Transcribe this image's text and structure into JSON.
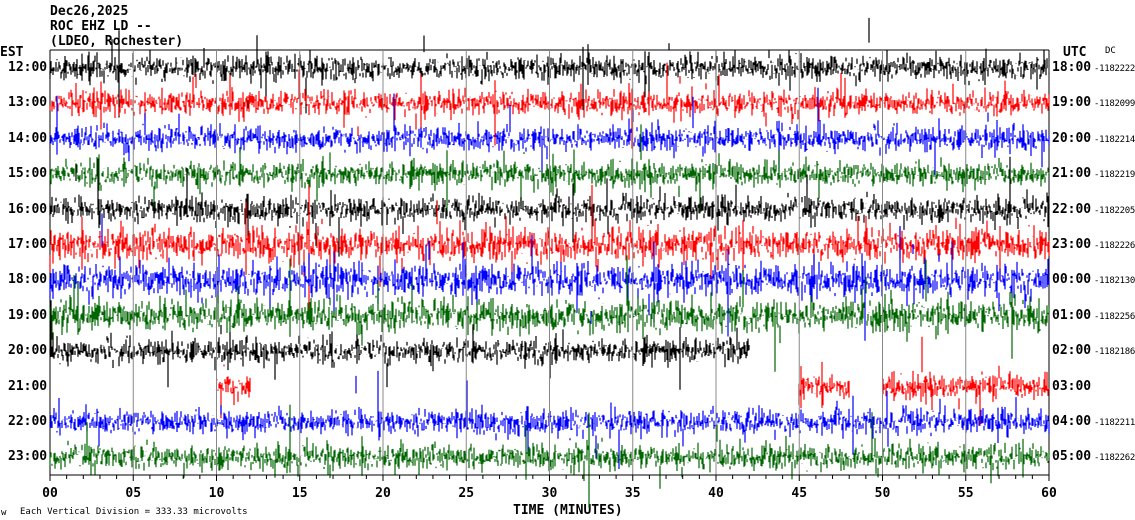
{
  "header": {
    "date": "Dec26,2025",
    "station": "ROC EHZ LD --",
    "network": "(LDEO, Rochester)",
    "left_tz": "EST",
    "right_tz": "UTC",
    "dc_label": "DC"
  },
  "footer": {
    "xlabel": "TIME (MINUTES)",
    "scale_note": "Each Vertical Division =   333.33 microvolts",
    "corner_mark": "w"
  },
  "chart_data": {
    "type": "line",
    "xlabel": "TIME (MINUTES)",
    "xlim": [
      0,
      60
    ],
    "x_ticks": [
      "00",
      "05",
      "10",
      "15",
      "20",
      "25",
      "30",
      "35",
      "40",
      "45",
      "50",
      "55",
      "60"
    ],
    "grid": true,
    "trace_colors": [
      "#000000",
      "#ff0000",
      "#0000ff",
      "#006600"
    ],
    "rows": [
      {
        "est": "12:00",
        "utc": "18:00",
        "dc": "-1182222",
        "color": "#000000"
      },
      {
        "est": "13:00",
        "utc": "19:00",
        "dc": "-1182099",
        "color": "#ff0000"
      },
      {
        "est": "14:00",
        "utc": "20:00",
        "dc": "-1182214",
        "color": "#0000ff"
      },
      {
        "est": "15:00",
        "utc": "21:00",
        "dc": "-1182219",
        "color": "#006600"
      },
      {
        "est": "16:00",
        "utc": "22:00",
        "dc": "-1182205",
        "color": "#000000"
      },
      {
        "est": "17:00",
        "utc": "23:00",
        "dc": "-1182226",
        "color": "#ff0000"
      },
      {
        "est": "18:00",
        "utc": "00:00",
        "dc": "-1182130",
        "color": "#0000ff"
      },
      {
        "est": "19:00",
        "utc": "01:00",
        "dc": "-1182256",
        "color": "#006600"
      },
      {
        "est": "20:00",
        "utc": "02:00",
        "dc": "-1182186",
        "color": "#000000",
        "data_minutes": [
          [
            0,
            42
          ]
        ]
      },
      {
        "est": "21:00",
        "utc": "03:00",
        "dc": "",
        "color": "#ff0000",
        "data_minutes": [
          [
            10,
            12
          ],
          [
            45,
            48
          ],
          [
            50,
            53
          ],
          [
            53,
            60
          ]
        ]
      },
      {
        "est": "22:00",
        "utc": "04:00",
        "dc": "-1182211",
        "color": "#0000ff"
      },
      {
        "est": "23:00",
        "utc": "05:00",
        "dc": "-1182262",
        "color": "#006600"
      }
    ]
  }
}
